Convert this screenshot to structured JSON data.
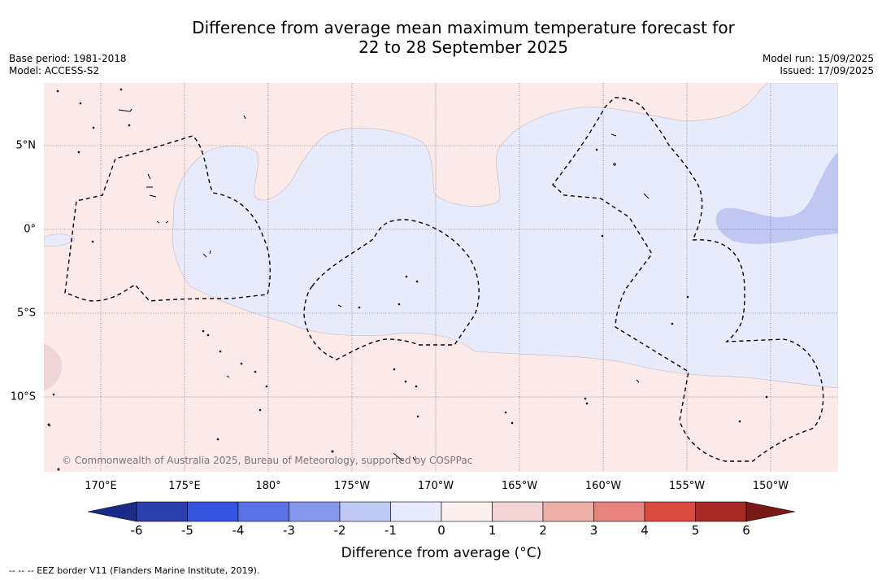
{
  "title_line1": "Difference from average mean maximum temperature forecast for",
  "title_line2": "22 to 28 September 2025",
  "base_period": "Base period: 1981-2018",
  "model": "Model: ACCESS-S2",
  "model_run": "Model run: 15/09/2025",
  "issued": "Issued: 17/09/2025",
  "copyright": "© Commonwealth of Australia 2025, Bureau of Meteorology, supported by COSPPac",
  "lon_labels": [
    "170°E",
    "175°E",
    "180°",
    "175°W",
    "170°W",
    "165°W",
    "160°W",
    "155°W",
    "150°W"
  ],
  "lat_labels": [
    "5°N",
    "0°",
    "5°S",
    "10°S"
  ],
  "colorbar": {
    "ticks": [
      "-6",
      "-5",
      "-4",
      "-3",
      "-2",
      "-1",
      "0",
      "1",
      "2",
      "3",
      "4",
      "5",
      "6"
    ],
    "colors": [
      "#1c2b8a",
      "#2b3fad",
      "#3355e0",
      "#5a72e6",
      "#8797ec",
      "#c0c8f4",
      "#e8ebfc",
      "#fdf0ee",
      "#f2d4d2",
      "#ecb0a9",
      "#e5837c",
      "#d94a3f",
      "#a82a26",
      "#7a1a16"
    ],
    "label": "Difference from average (°C)"
  },
  "legend_note": "-- -- -- EEZ border V11 (Flanders Marine Institute, 2019)."
}
